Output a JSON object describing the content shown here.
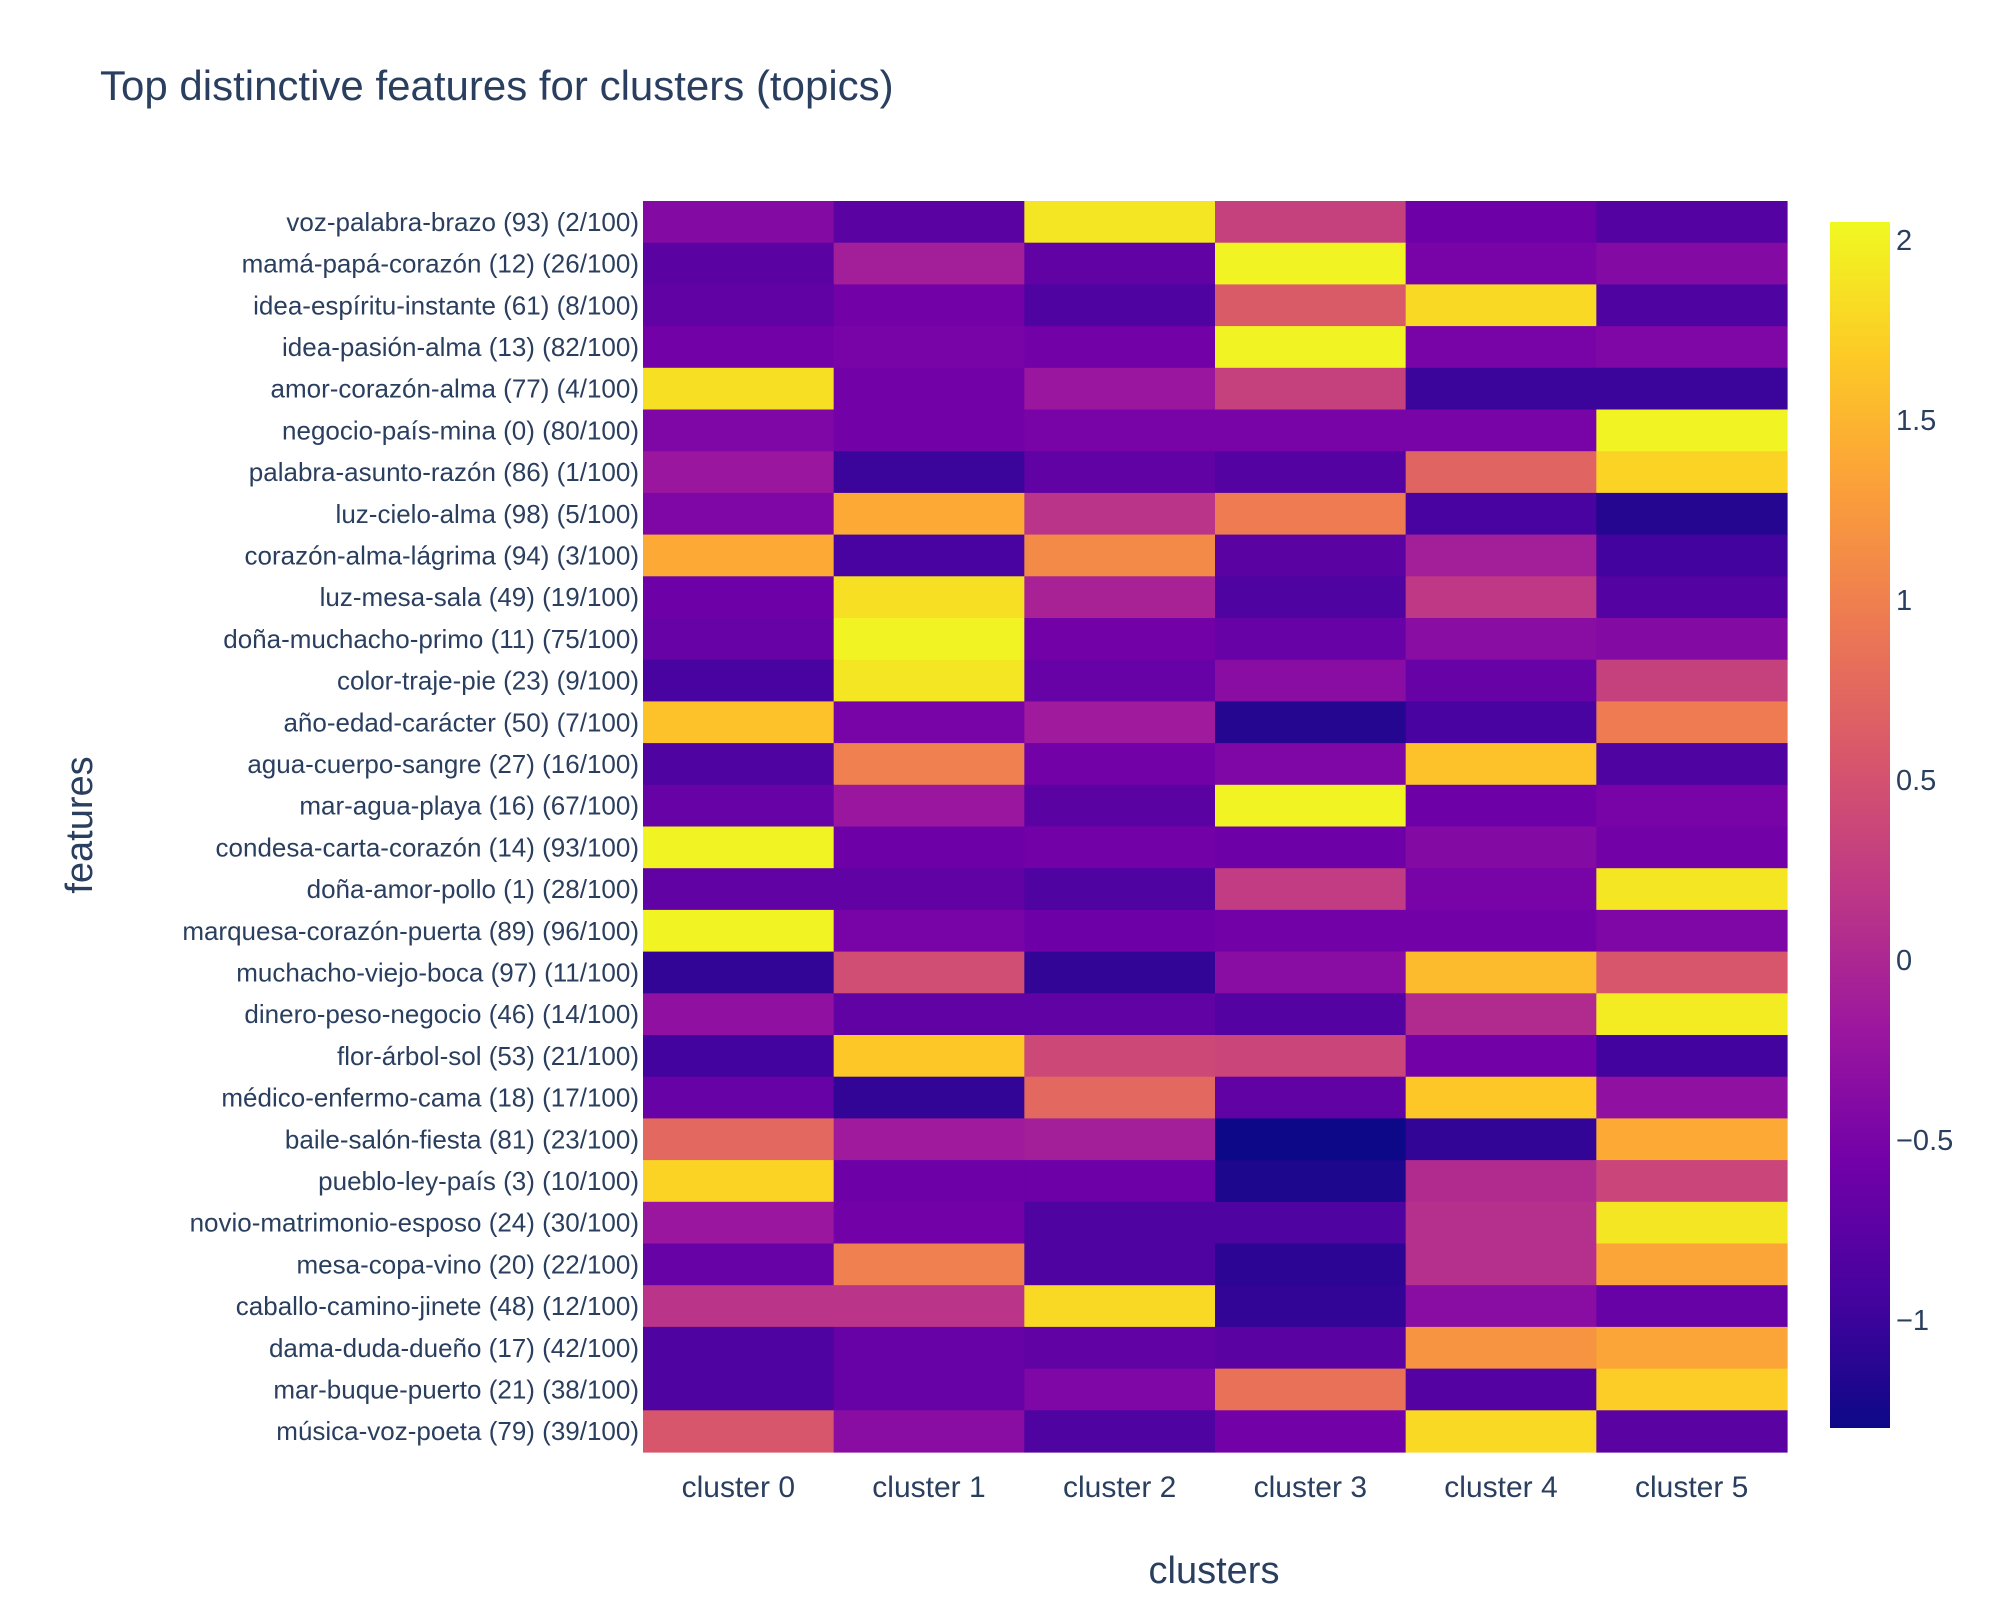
{
  "chart_data": {
    "type": "heatmap",
    "title": "Top distinctive features for clusters (topics)",
    "xlabel": "clusters",
    "ylabel": "features",
    "colorscale": "plasma",
    "zrange": [
      -1.3,
      2.05
    ],
    "colorbar_ticks": [
      {
        "value": 2,
        "label": "2"
      },
      {
        "value": 1.5,
        "label": "1.5"
      },
      {
        "value": 1,
        "label": "1"
      },
      {
        "value": 0.5,
        "label": "0.5"
      },
      {
        "value": 0,
        "label": "0"
      },
      {
        "value": -0.5,
        "label": "−0.5"
      },
      {
        "value": -1,
        "label": "−1"
      }
    ],
    "columns": [
      "cluster 0",
      "cluster 1",
      "cluster 2",
      "cluster 3",
      "cluster 4",
      "cluster 5"
    ],
    "rows": [
      "voz-palabra-brazo (93) (2/100)",
      "mamá-papá-corazón (12) (26/100)",
      "idea-espíritu-instante (61) (8/100)",
      "idea-pasión-alma (13) (82/100)",
      "amor-corazón-alma (77) (4/100)",
      "negocio-país-mina (0) (80/100)",
      "palabra-asunto-razón (86) (1/100)",
      "luz-cielo-alma (98) (5/100)",
      "corazón-alma-lágrima (94) (3/100)",
      "luz-mesa-sala (49) (19/100)",
      "doña-muchacho-primo (11) (75/100)",
      "color-traje-pie (23) (9/100)",
      "año-edad-carácter (50) (7/100)",
      "agua-cuerpo-sangre (27) (16/100)",
      "mar-agua-playa (16) (67/100)",
      "condesa-carta-corazón (14) (93/100)",
      "doña-amor-pollo (1) (28/100)",
      "marquesa-corazón-puerta (89) (96/100)",
      "muchacho-viejo-boca (97) (11/100)",
      "dinero-peso-negocio (46) (14/100)",
      "flor-árbol-sol (53) (21/100)",
      "médico-enfermo-cama (18) (17/100)",
      "baile-salón-fiesta (81) (23/100)",
      "pueblo-ley-país (3) (10/100)",
      "novio-matrimonio-esposo (24) (30/100)",
      "mesa-copa-vino (20) (22/100)",
      "caballo-camino-jinete (48) (12/100)",
      "dama-duda-dueño (17) (42/100)",
      "mar-buque-puerto (21) (38/100)",
      "música-voz-poeta (79) (39/100)"
    ],
    "values": [
      [
        -0.4,
        -0.75,
        1.9,
        0.3,
        -0.6,
        -0.8
      ],
      [
        -0.75,
        -0.1,
        -0.7,
        2.0,
        -0.5,
        -0.4
      ],
      [
        -0.7,
        -0.55,
        -0.85,
        0.6,
        1.8,
        -0.85
      ],
      [
        -0.55,
        -0.5,
        -0.55,
        2.0,
        -0.5,
        -0.45
      ],
      [
        1.85,
        -0.55,
        -0.2,
        0.3,
        -1.0,
        -1.0
      ],
      [
        -0.45,
        -0.55,
        -0.5,
        -0.5,
        -0.5,
        2.0
      ],
      [
        -0.2,
        -1.0,
        -0.7,
        -0.8,
        0.7,
        1.75
      ],
      [
        -0.45,
        1.4,
        0.15,
        0.95,
        -0.9,
        -1.15
      ],
      [
        1.4,
        -0.9,
        1.1,
        -0.75,
        -0.1,
        -0.95
      ],
      [
        -0.6,
        1.85,
        -0.05,
        -0.85,
        0.2,
        -0.8
      ],
      [
        -0.65,
        2.0,
        -0.55,
        -0.65,
        -0.35,
        -0.4
      ],
      [
        -0.9,
        1.9,
        -0.65,
        -0.35,
        -0.65,
        0.3
      ],
      [
        1.6,
        -0.5,
        -0.15,
        -1.15,
        -0.9,
        0.95
      ],
      [
        -0.85,
        1.0,
        -0.55,
        -0.45,
        1.6,
        -0.85
      ],
      [
        -0.65,
        -0.2,
        -0.75,
        2.0,
        -0.6,
        -0.5
      ],
      [
        2.0,
        -0.6,
        -0.55,
        -0.6,
        -0.4,
        -0.55
      ],
      [
        -0.7,
        -0.7,
        -0.85,
        0.25,
        -0.5,
        1.9
      ],
      [
        2.0,
        -0.5,
        -0.6,
        -0.55,
        -0.55,
        -0.45
      ],
      [
        -1.05,
        0.45,
        -1.05,
        -0.35,
        1.55,
        0.55
      ],
      [
        -0.3,
        -0.7,
        -0.7,
        -0.8,
        0.05,
        1.95
      ],
      [
        -0.95,
        1.65,
        0.4,
        0.35,
        -0.55,
        -0.95
      ],
      [
        -0.65,
        -1.05,
        0.75,
        -0.7,
        1.65,
        -0.3
      ],
      [
        0.75,
        -0.15,
        -0.1,
        -1.3,
        -1.05,
        1.4
      ],
      [
        1.75,
        -0.6,
        -0.6,
        -1.2,
        0.05,
        0.35
      ],
      [
        -0.2,
        -0.55,
        -0.85,
        -0.85,
        0.1,
        1.9
      ],
      [
        -0.65,
        1.0,
        -0.85,
        -1.1,
        0.1,
        1.35
      ],
      [
        0.15,
        0.15,
        1.8,
        -1.05,
        -0.35,
        -0.65
      ],
      [
        -0.85,
        -0.65,
        -0.7,
        -0.75,
        1.2,
        1.35
      ],
      [
        -0.85,
        -0.65,
        -0.45,
        0.85,
        -0.8,
        1.7
      ],
      [
        0.55,
        -0.35,
        -0.85,
        -0.55,
        1.8,
        -0.75
      ]
    ]
  }
}
